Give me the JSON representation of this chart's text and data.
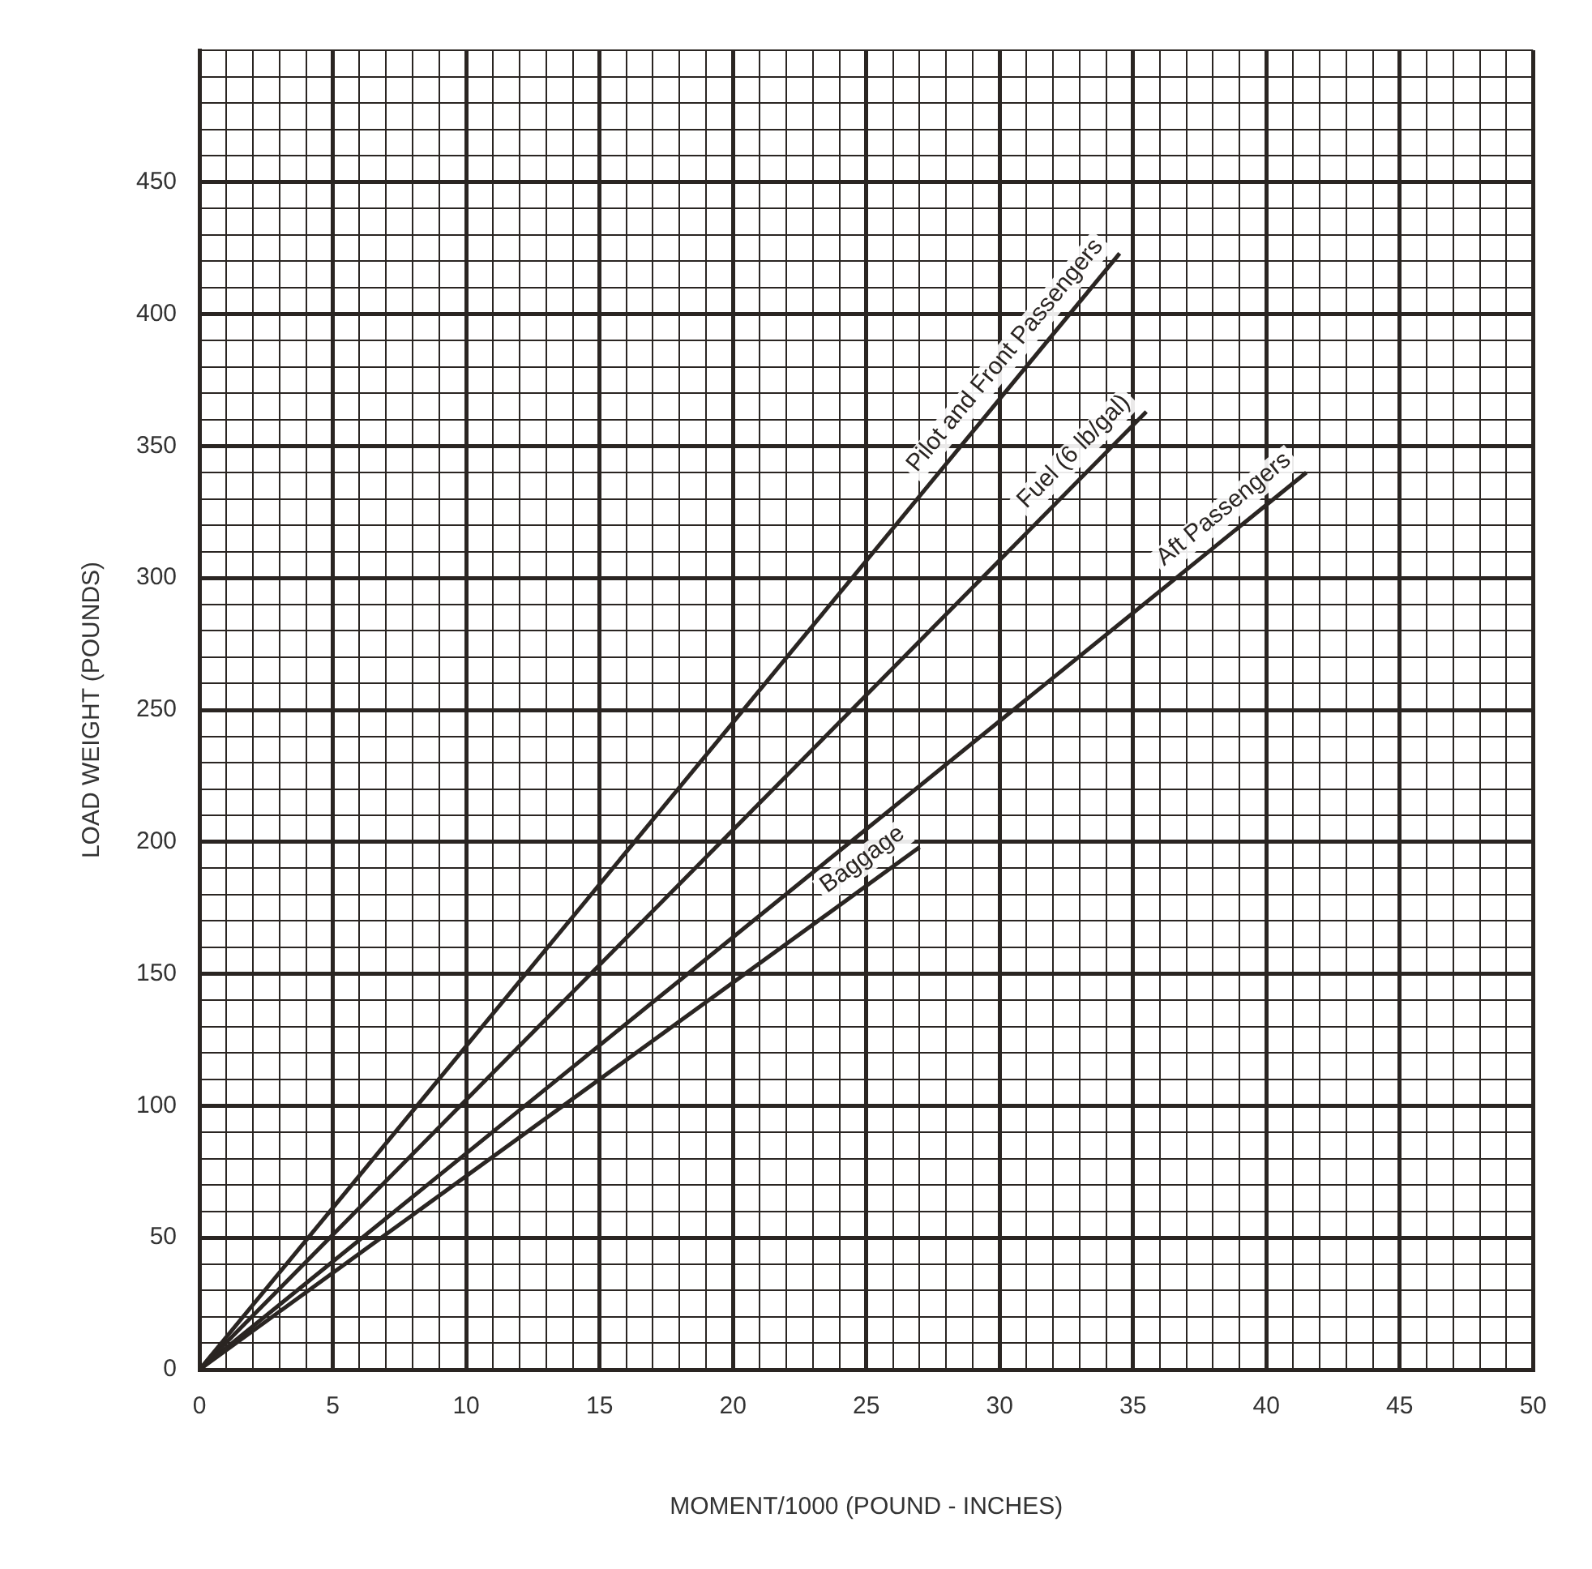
{
  "chart_data": {
    "type": "line",
    "xlabel": "MOMENT/1000 (POUND - INCHES)",
    "ylabel": "LOAD WEIGHT (POUNDS)",
    "xlim": [
      0,
      50
    ],
    "xticks": [
      0,
      {
        "value": 1,
        "label": null
      },
      {
        "value": 2,
        "label": null
      },
      {
        "value": 3,
        "label": null
      },
      {
        "value": 4,
        "label": null
      },
      5,
      {
        "value": 6,
        "label": null
      },
      {
        "value": 7,
        "label": null
      },
      {
        "value": 8,
        "label": null
      },
      {
        "value": 9,
        "label": null
      },
      10,
      {
        "value": 11,
        "label": null
      },
      {
        "value": 12,
        "label": null
      },
      {
        "value": 13,
        "label": null
      },
      {
        "value": 14,
        "label": null
      },
      15,
      {
        "value": 16,
        "label": null
      },
      {
        "value": 17,
        "label": null
      },
      {
        "value": 18,
        "label": null
      },
      {
        "value": 19,
        "label": null
      },
      20,
      {
        "value": 21,
        "label": null
      },
      {
        "value": 22,
        "label": null
      },
      {
        "value": 23,
        "label": null
      },
      {
        "value": 24,
        "label": null
      },
      25,
      {
        "value": 26,
        "label": null
      },
      {
        "value": 27,
        "label": null
      },
      {
        "value": 28,
        "label": null
      },
      {
        "value": 29,
        "label": null
      },
      30,
      {
        "value": 31,
        "label": null
      },
      {
        "value": 32,
        "label": null
      },
      {
        "value": 33,
        "label": null
      },
      {
        "value": 34,
        "label": null
      },
      35,
      {
        "value": 36,
        "label": null
      },
      {
        "value": 37,
        "label": null
      },
      {
        "value": 38,
        "label": null
      },
      {
        "value": 39,
        "label": null
      },
      40,
      {
        "value": 41,
        "label": null
      },
      {
        "value": 42,
        "label": null
      },
      {
        "value": 43,
        "label": null
      },
      {
        "value": 44,
        "label": null
      },
      45,
      {
        "value": 46,
        "label": null
      },
      {
        "value": 47,
        "label": null
      },
      {
        "value": 48,
        "label": null
      },
      {
        "value": 49,
        "label": null
      },
      50
    ],
    "ylim": [
      0,
      500
    ],
    "yticks": [
      0,
      {
        "value": 10,
        "label": null
      },
      {
        "value": 20,
        "label": null
      },
      {
        "value": 30,
        "label": null
      },
      {
        "value": 40,
        "label": null
      },
      50,
      {
        "value": 60,
        "label": null
      },
      {
        "value": 70,
        "label": null
      },
      {
        "value": 80,
        "label": null
      },
      {
        "value": 90,
        "label": null
      },
      100,
      {
        "value": 110,
        "label": null
      },
      {
        "value": 120,
        "label": null
      },
      {
        "value": 130,
        "label": null
      },
      {
        "value": 140,
        "label": null
      },
      150,
      {
        "value": 160,
        "label": null
      },
      {
        "value": 170,
        "label": null
      },
      {
        "value": 180,
        "label": null
      },
      {
        "value": 190,
        "label": null
      },
      200,
      {
        "value": 210,
        "label": null
      },
      {
        "value": 220,
        "label": null
      },
      {
        "value": 230,
        "label": null
      },
      {
        "value": 240,
        "label": null
      },
      250,
      {
        "value": 260,
        "label": null
      },
      {
        "value": 270,
        "label": null
      },
      {
        "value": 280,
        "label": null
      },
      {
        "value": 290,
        "label": null
      },
      300,
      {
        "value": 310,
        "label": null
      },
      {
        "value": 320,
        "label": null
      },
      {
        "value": 330,
        "label": null
      },
      {
        "value": 340,
        "label": null
      },
      350,
      {
        "value": 360,
        "label": null
      },
      {
        "value": 370,
        "label": null
      },
      {
        "value": 380,
        "label": null
      },
      {
        "value": 390,
        "label": null
      },
      400,
      {
        "value": 410,
        "label": null
      },
      {
        "value": 420,
        "label": null
      },
      {
        "value": 430,
        "label": null
      },
      {
        "value": 440,
        "label": null
      },
      450,
      {
        "value": 460,
        "label": null
      },
      {
        "value": 470,
        "label": null
      },
      {
        "value": 480,
        "label": null
      },
      {
        "value": 490,
        "label": null
      },
      {
        "value": 500,
        "label": null
      }
    ],
    "grid": true,
    "legend": false,
    "marker": "none",
    "line_style": "solid",
    "series": [
      {
        "name": "Pilot and Front Passengers",
        "color": "#2a2522",
        "x": [
          0,
          34.5
        ],
        "values": [
          0,
          423
        ]
      },
      {
        "name": "Fuel (6 lb/gal)",
        "color": "#2a2522",
        "x": [
          0,
          35.5
        ],
        "values": [
          0,
          363
        ]
      },
      {
        "name": "Aft Passengers",
        "color": "#2a2522",
        "x": [
          0,
          41.5
        ],
        "values": [
          0,
          340
        ]
      },
      {
        "name": "Baggage",
        "color": "#2a2522",
        "x": [
          0,
          27
        ],
        "values": [
          0,
          198
        ]
      }
    ]
  }
}
